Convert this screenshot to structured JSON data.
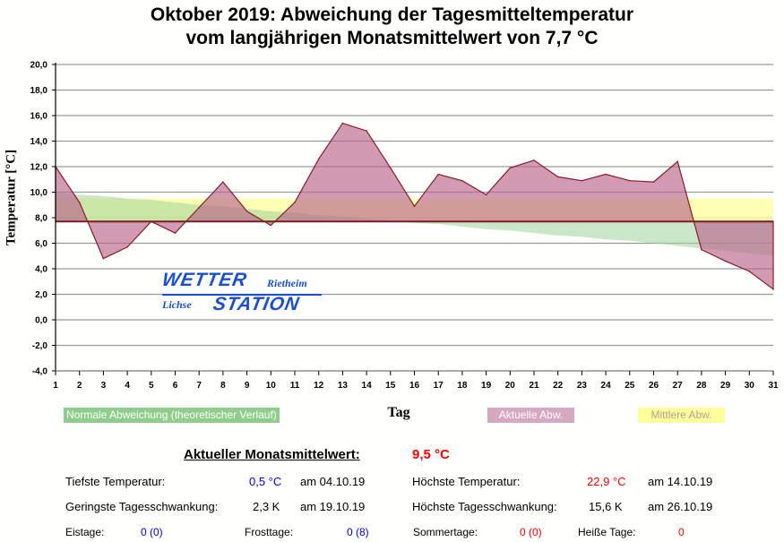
{
  "header": {
    "title_line1": "Oktober 2019: Abweichung der Tagesmitteltemperatur",
    "title_line2": "vom langjährigen Monatsmittelwert von 7,7 °C"
  },
  "logo": {
    "word1": "WETTER",
    "word2": "STATION",
    "place1": "Rietheim",
    "place2": "Lichse"
  },
  "chart_data": {
    "type": "area",
    "title": "Oktober 2019: Abweichung der Tagesmitteltemperatur vom langjährigen Monatsmittelwert von 7,7 °C",
    "xlabel": "Tag",
    "ylabel": "Temperatur [°C]",
    "ylim": [
      -4,
      20
    ],
    "xlim": [
      1,
      31
    ],
    "grid": true,
    "baseline": 7.7,
    "yticks": [
      "-4,0",
      "-2,0",
      "0,0",
      "2,0",
      "4,0",
      "6,0",
      "8,0",
      "10,0",
      "12,0",
      "14,0",
      "16,0",
      "18,0",
      "20,0"
    ],
    "ytick_values": [
      -4,
      -2,
      0,
      2,
      4,
      6,
      8,
      10,
      12,
      14,
      16,
      18,
      20
    ],
    "x": [
      1,
      2,
      3,
      4,
      5,
      6,
      7,
      8,
      9,
      10,
      11,
      12,
      13,
      14,
      15,
      16,
      17,
      18,
      19,
      20,
      21,
      22,
      23,
      24,
      25,
      26,
      27,
      28,
      29,
      30,
      31
    ],
    "series": [
      {
        "name": "Aktuelle Abw.",
        "color": "#b8668e",
        "values": [
          12.0,
          9.2,
          4.8,
          5.7,
          7.7,
          6.8,
          8.8,
          10.8,
          8.5,
          7.4,
          9.2,
          12.6,
          15.4,
          14.8,
          11.9,
          8.9,
          11.4,
          10.9,
          9.8,
          11.9,
          12.5,
          11.2,
          10.9,
          11.4,
          10.9,
          10.8,
          12.4,
          5.5,
          4.6,
          3.8,
          2.4
        ]
      },
      {
        "name": "Normale Abweichung (theoretischer Verlauf)",
        "color": "#9fd49a",
        "values": [
          10.0,
          9.8,
          9.7,
          9.5,
          9.4,
          9.2,
          9.0,
          8.9,
          8.7,
          8.5,
          8.4,
          8.2,
          8.1,
          7.9,
          7.8,
          7.6,
          7.5,
          7.3,
          7.1,
          7.0,
          6.8,
          6.6,
          6.5,
          6.3,
          6.2,
          6.0,
          5.8,
          5.6,
          5.4,
          5.2,
          5.0
        ]
      },
      {
        "name": "Mittlere Abw.",
        "color": "#ffff99",
        "values": [
          9.5,
          9.5,
          9.5,
          9.5,
          9.5,
          9.5,
          9.5,
          9.5,
          9.5,
          9.5,
          9.5,
          9.5,
          9.5,
          9.5,
          9.5,
          9.5,
          9.5,
          9.5,
          9.5,
          9.5,
          9.5,
          9.5,
          9.5,
          9.5,
          9.5,
          9.5,
          9.5,
          9.5,
          9.5,
          9.5,
          9.5
        ]
      }
    ],
    "legend": [
      "Normale Abweichung (theoretischer Verlauf)",
      "Aktuelle Abw.",
      "Mittlere Abw."
    ],
    "legend_position": "bottom"
  },
  "stats": {
    "mean_label": "Aktueller Monatsmittelwert:",
    "mean_value": "9,5 °C",
    "min_temp_label": "Tiefste Temperatur:",
    "min_temp_value": "0,5 °C",
    "min_temp_date": "am 04.10.19",
    "max_temp_label": "Höchste Temperatur:",
    "max_temp_value": "22,9 °C",
    "max_temp_date": "am 14.10.19",
    "min_range_label": "Geringste Tagesschwankung:",
    "min_range_value": "2,3 K",
    "min_range_date": "am 19.10.19",
    "max_range_label": "Höchste Tagesschwankung:",
    "max_range_value": "15,6 K",
    "max_range_date": "am 26.10.19",
    "ice_label": "Eistage:",
    "ice_value": "0 (0)",
    "frost_label": "Frosttage:",
    "frost_value": "0 (8)",
    "summer_label": "Sommertage:",
    "summer_value": "0 (0)",
    "hot_label": "Heiße Tage:",
    "hot_value": "0"
  },
  "colors": {
    "actual": "#b8668e",
    "actual_line": "#8b1a2a",
    "normal": "#9fd49a",
    "mean": "#ffff99",
    "blue": "#0000ff",
    "red": "#ff0000"
  }
}
